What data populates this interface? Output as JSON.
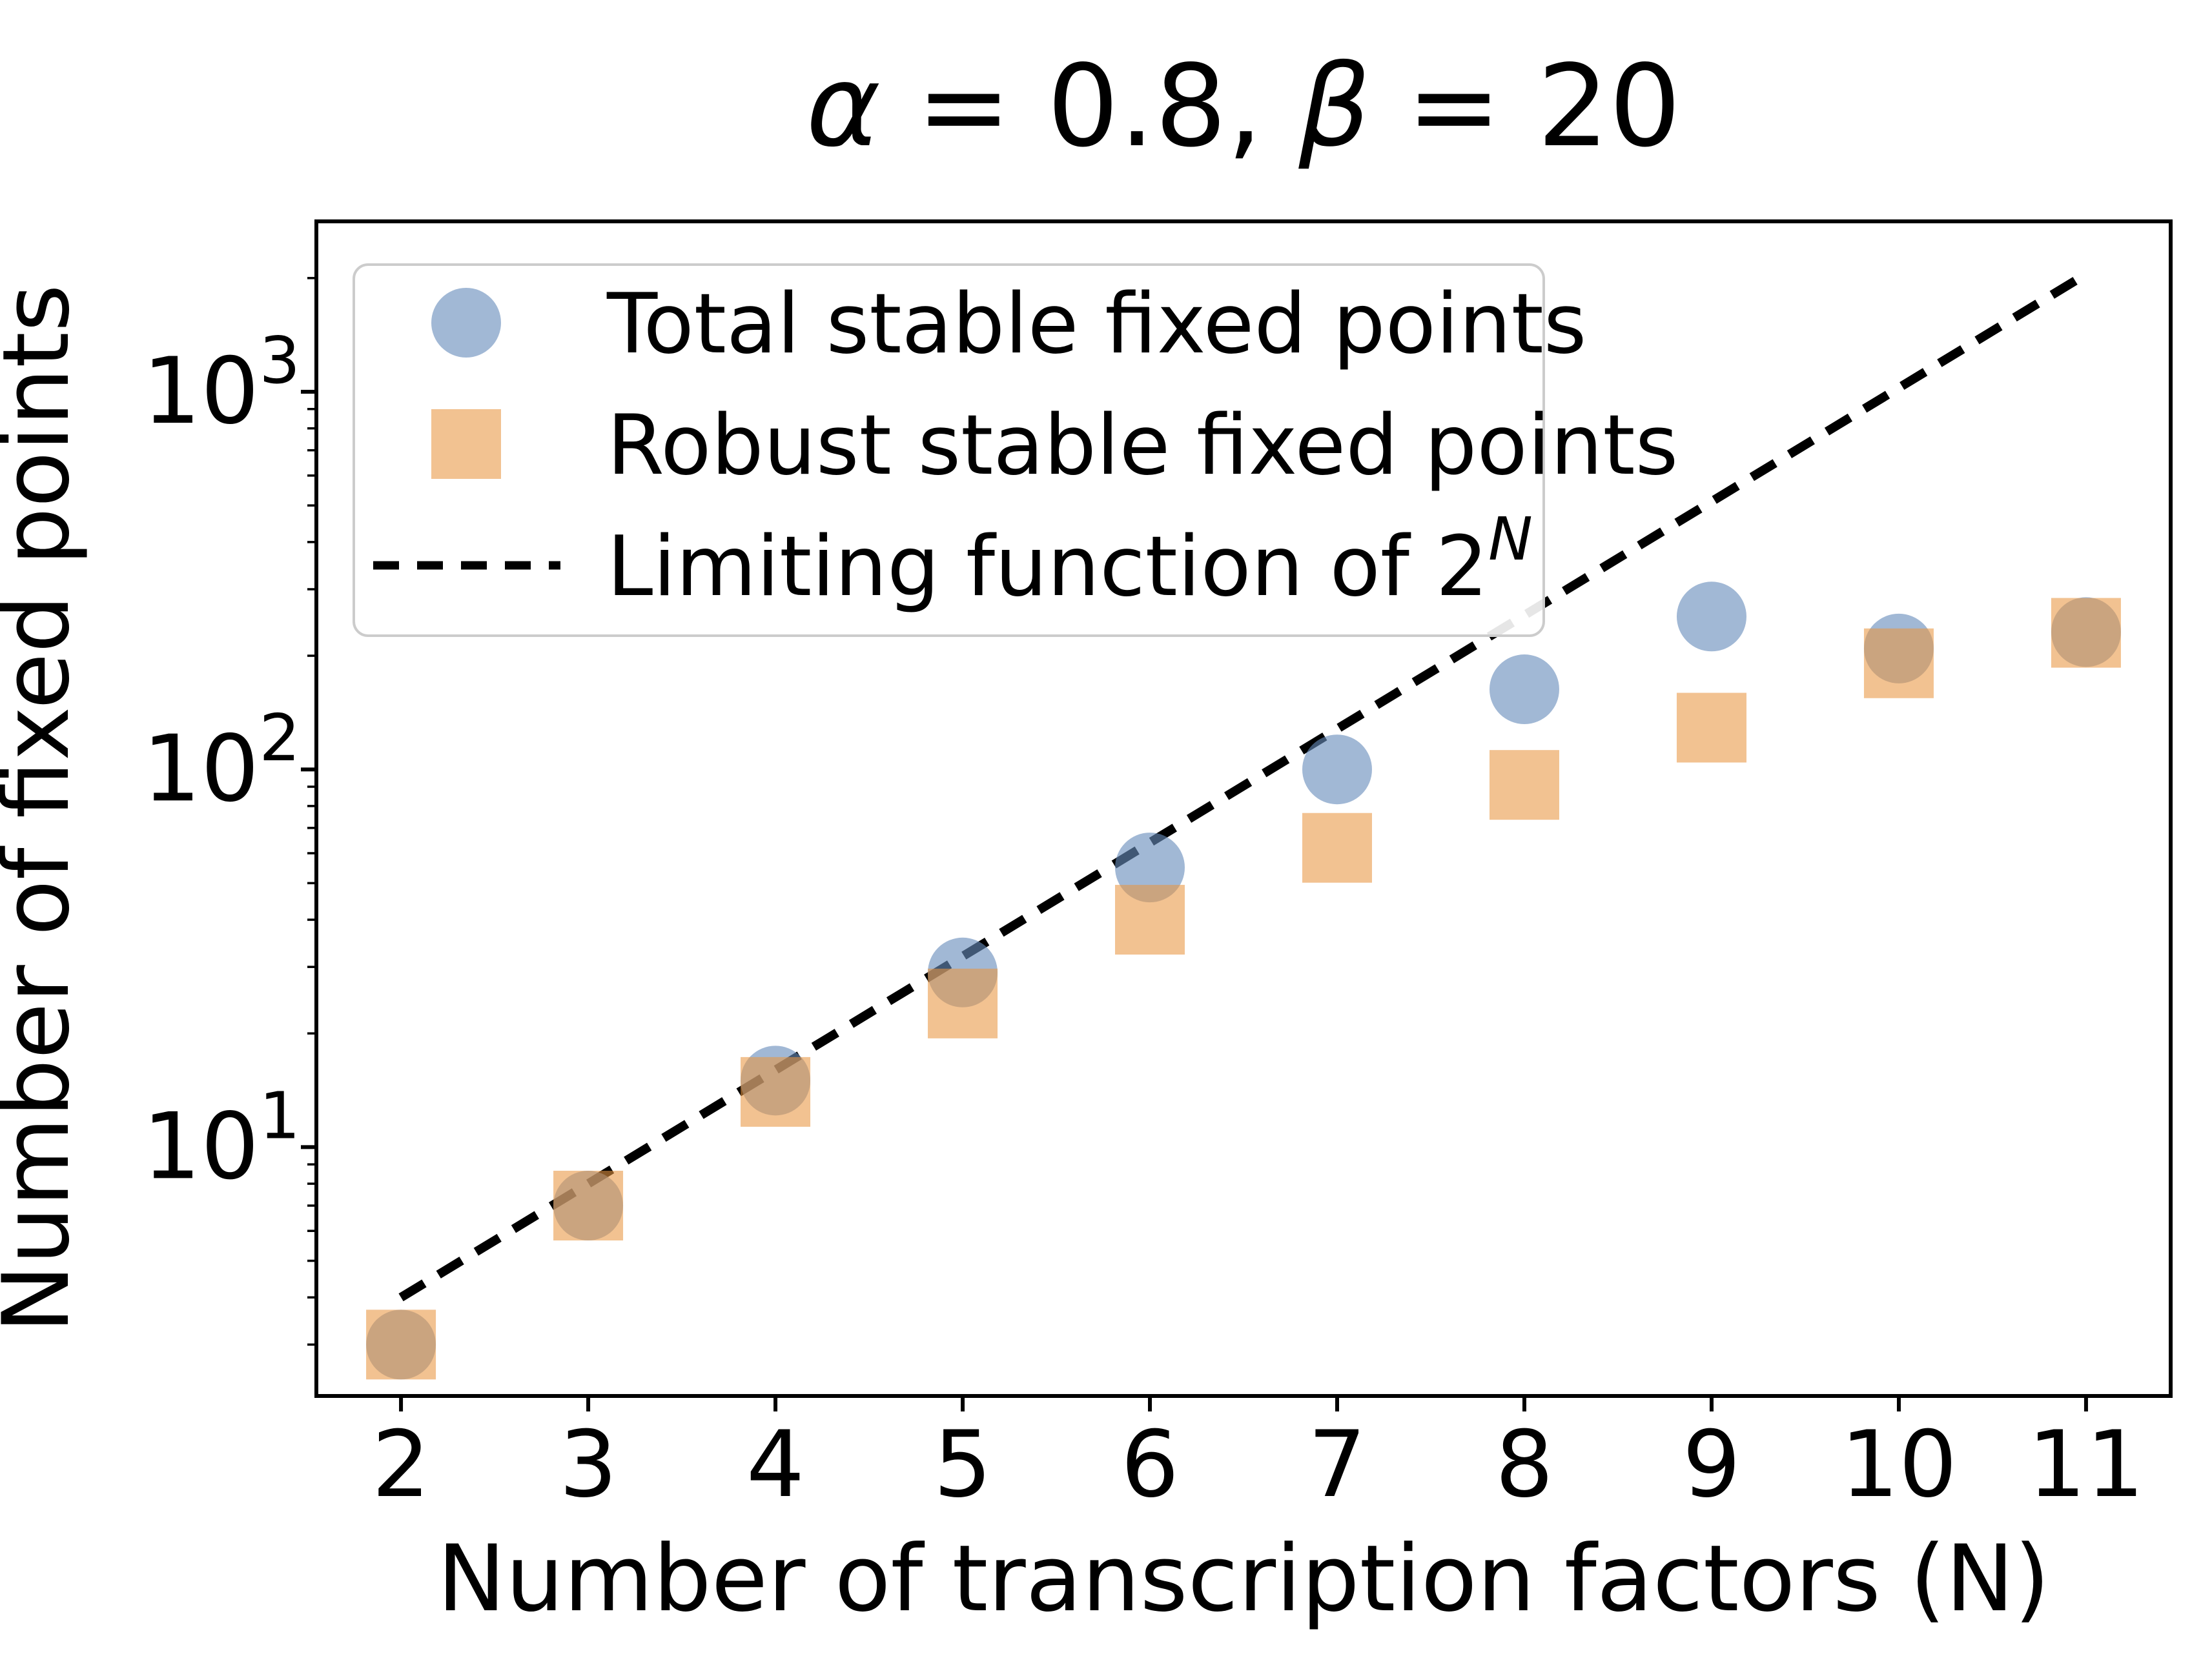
{
  "figure": {
    "title": "α = 0.8, β = 20",
    "title_parts": [
      {
        "text": "α",
        "italic": true
      },
      {
        "text": " = 0.8, ",
        "italic": false
      },
      {
        "text": "β",
        "italic": true
      },
      {
        "text": " = 20",
        "italic": false
      }
    ]
  },
  "chart_data": {
    "type": "scatter",
    "title": "α = 0.8, β = 20",
    "xlabel": "Number of transcription factors (N)",
    "ylabel": "Number of fixed points",
    "yscale": "log",
    "grid": false,
    "x": [
      2,
      3,
      4,
      5,
      6,
      7,
      8,
      9,
      10,
      11
    ],
    "xticks": [
      2,
      3,
      4,
      5,
      6,
      7,
      8,
      9,
      10,
      11
    ],
    "yticks": [
      10,
      100,
      1000
    ],
    "ytick_exponents": [
      1,
      2,
      3
    ],
    "ytick_base": "10",
    "xlim": [
      1.548,
      11.452
    ],
    "ylim": [
      2.193,
      2826
    ],
    "series": [
      {
        "name": "Total stable fixed points",
        "marker": "circle",
        "color": "rgba(104,140,188,0.62)",
        "values": [
          3,
          7,
          15,
          29,
          55,
          100,
          163,
          254,
          209,
          231
        ]
      },
      {
        "name": "Robust stable fixed points",
        "marker": "square",
        "color": "rgba(233,150,66,0.58)",
        "values": [
          3,
          7,
          14,
          24,
          40,
          62,
          91,
          129,
          191,
          230
        ]
      }
    ],
    "limit_line": {
      "label_base": "Limiting function of 2",
      "label_sup": "N",
      "base": 2,
      "from_n": 2,
      "to_n": 11,
      "color": "#000000",
      "style": "dashed"
    },
    "legend": {
      "position": "upper left",
      "entries": [
        {
          "marker": "circle",
          "label": "Total stable fixed points"
        },
        {
          "marker": "square",
          "label": "Robust stable fixed points"
        },
        {
          "marker": "dash",
          "label_base": "Limiting function of 2",
          "label_sup": "N"
        }
      ]
    },
    "colors": {
      "circle_fill": "rgba(104,140,188,0.62)",
      "square_fill": "rgba(233,150,66,0.58)",
      "line": "#000000",
      "legend_border": "#cccccc",
      "legend_fill": "rgba(255,255,255,0.9)",
      "axes": "#000000"
    }
  }
}
